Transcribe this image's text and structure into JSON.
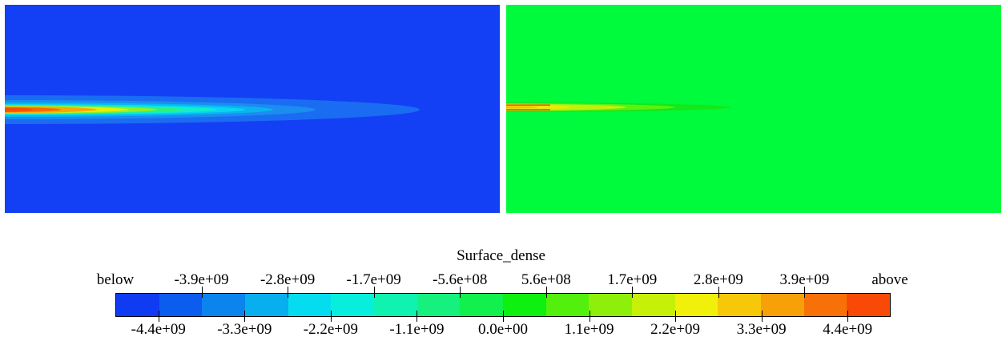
{
  "legend": {
    "title": "Surface_dense",
    "below_label": "below",
    "above_label": "above",
    "upper_labels": [
      "-3.9e+09",
      "-2.8e+09",
      "-1.7e+09",
      "-5.6e+08",
      "5.6e+08",
      "1.7e+09",
      "2.8e+09",
      "3.9e+09"
    ],
    "lower_labels": [
      "-4.4e+09",
      "-3.3e+09",
      "-2.2e+09",
      "-1.1e+09",
      "0.0e+00",
      "1.1e+09",
      "2.2e+09",
      "3.3e+09",
      "4.4e+09"
    ],
    "colors": [
      "#0f3cf2",
      "#0d5cf0",
      "#0b84ee",
      "#08aeed",
      "#06dcf0",
      "#08eedd",
      "#10f2b0",
      "#16f07c",
      "#11f04c",
      "#0ef00f",
      "#52f00c",
      "#8ef00a",
      "#c6f008",
      "#f0f00a",
      "#f6c808",
      "#f8a008",
      "#f87008",
      "#f84a06"
    ]
  },
  "panels": {
    "left": {
      "background": "#1440f5"
    },
    "right": {
      "background": "#00fa3c"
    }
  }
}
